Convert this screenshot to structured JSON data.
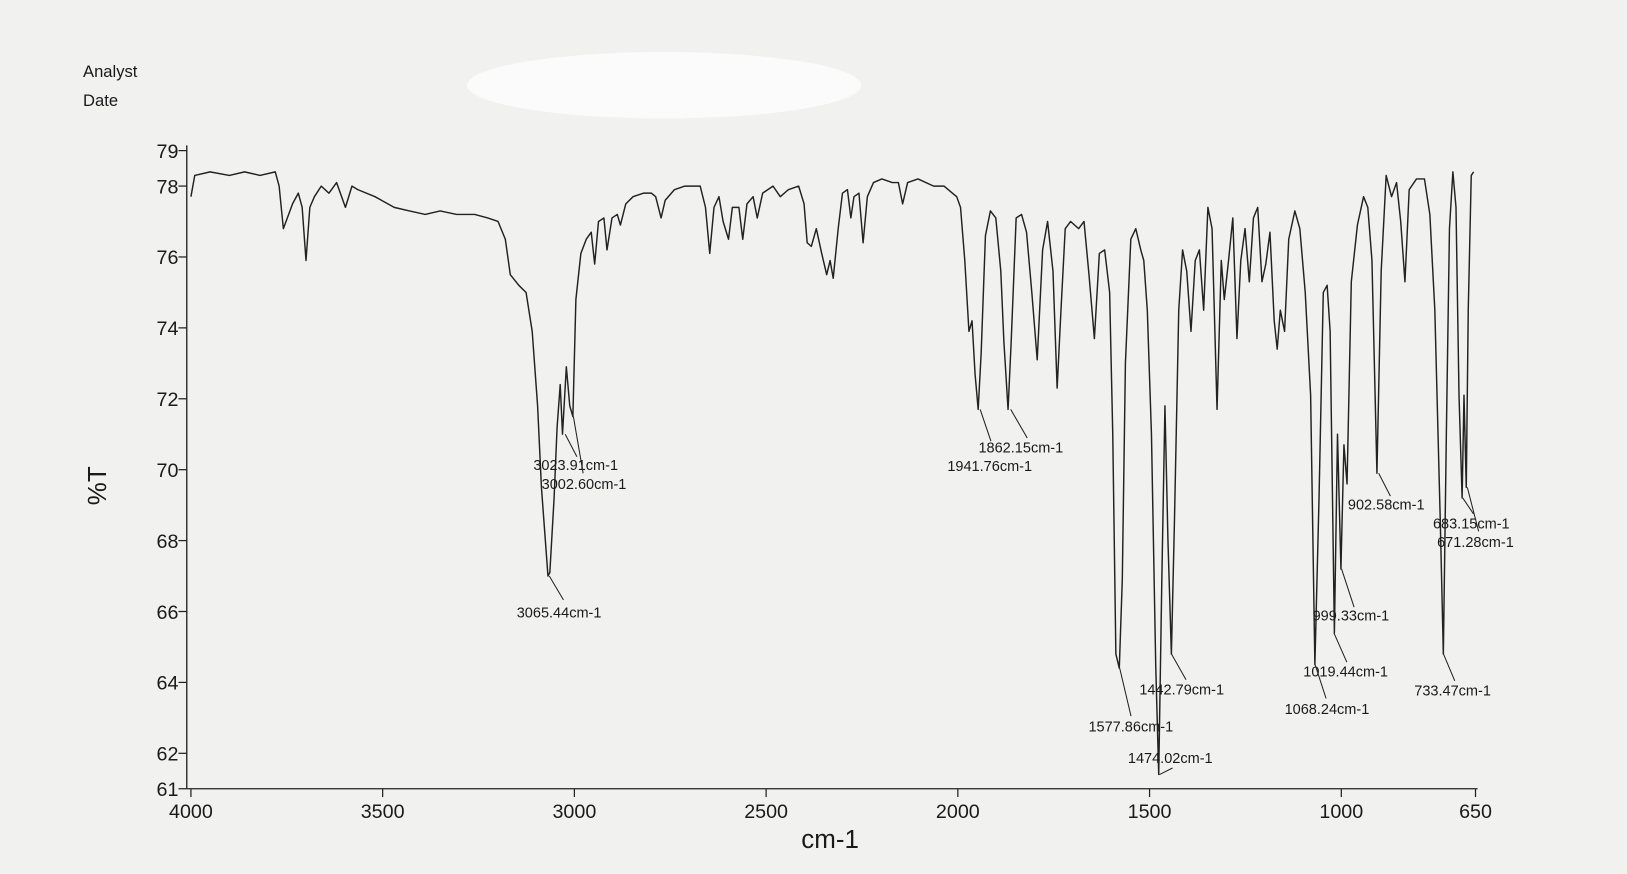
{
  "header": {
    "lines": [
      "Analyst",
      "Date"
    ]
  },
  "chart_data": {
    "type": "line",
    "xlabel": "cm-1",
    "ylabel": "%T",
    "color": "#222222",
    "xlim": [
      4000,
      650
    ],
    "ylim": [
      61,
      79
    ],
    "xticks": [
      4000,
      3500,
      3000,
      2500,
      2000,
      1500,
      1000,
      650
    ],
    "yticks": [
      61,
      62,
      64,
      66,
      68,
      70,
      72,
      74,
      76,
      78,
      79
    ],
    "x": [
      4000,
      3990,
      3950,
      3900,
      3860,
      3820,
      3780,
      3770,
      3759,
      3745,
      3735,
      3720,
      3710,
      3700,
      3690,
      3678,
      3660,
      3640,
      3620,
      3597,
      3580,
      3565,
      3520,
      3470,
      3430,
      3389,
      3350,
      3307,
      3260,
      3226,
      3199,
      3180,
      3167,
      3145,
      3126,
      3110,
      3096,
      3086,
      3069,
      3064,
      3053,
      3045,
      3037,
      3031,
      3021,
      3012,
      3004,
      2996,
      2983,
      2969,
      2956,
      2947,
      2937,
      2923,
      2915,
      2902,
      2888,
      2880,
      2866,
      2847,
      2820,
      2799,
      2788,
      2774,
      2763,
      2739,
      2712,
      2672,
      2658,
      2647,
      2636,
      2623,
      2612,
      2598,
      2588,
      2571,
      2561,
      2550,
      2534,
      2523,
      2509,
      2482,
      2463,
      2442,
      2415,
      2401,
      2393,
      2382,
      2369,
      2355,
      2342,
      2333,
      2325,
      2312,
      2301,
      2288,
      2279,
      2271,
      2258,
      2247,
      2236,
      2220,
      2198,
      2171,
      2155,
      2144,
      2131,
      2104,
      2063,
      2036,
      2014,
      2003,
      1993,
      1982,
      1971,
      1963,
      1955,
      1947,
      1939,
      1928,
      1915,
      1901,
      1888,
      1880,
      1869,
      1861,
      1848,
      1834,
      1821,
      1807,
      1793,
      1779,
      1766,
      1752,
      1741,
      1731,
      1720,
      1706,
      1685,
      1671,
      1658,
      1644,
      1631,
      1617,
      1604,
      1596,
      1588,
      1579,
      1571,
      1563,
      1549,
      1536,
      1523,
      1515,
      1506,
      1495,
      1484,
      1476,
      1468,
      1460,
      1452,
      1443,
      1435,
      1424,
      1414,
      1403,
      1392,
      1381,
      1370,
      1359,
      1348,
      1337,
      1324,
      1313,
      1305,
      1294,
      1283,
      1272,
      1262,
      1251,
      1240,
      1229,
      1218,
      1207,
      1197,
      1186,
      1175,
      1167,
      1159,
      1148,
      1137,
      1121,
      1108,
      1094,
      1080,
      1069,
      1058,
      1047,
      1037,
      1029,
      1018,
      1010,
      1001,
      993,
      985,
      974,
      958,
      942,
      931,
      920,
      907,
      896,
      883,
      869,
      856,
      845,
      834,
      823,
      804,
      783,
      769,
      756,
      742,
      734,
      726,
      718,
      709,
      701,
      693,
      685,
      680,
      674,
      669,
      661,
      655
    ],
    "values": [
      77.7,
      78.3,
      78.4,
      78.3,
      78.4,
      78.3,
      78.4,
      78.0,
      76.8,
      77.2,
      77.5,
      77.8,
      77.4,
      75.9,
      77.4,
      77.7,
      78.0,
      77.8,
      78.1,
      77.4,
      78.0,
      77.9,
      77.7,
      77.4,
      77.3,
      77.2,
      77.3,
      77.2,
      77.2,
      77.1,
      77.0,
      76.5,
      75.5,
      75.2,
      75.0,
      73.9,
      71.8,
      69.5,
      67.0,
      67.1,
      69.2,
      71.2,
      72.4,
      71.0,
      72.9,
      71.8,
      71.5,
      74.8,
      76.1,
      76.5,
      76.7,
      75.8,
      77.0,
      77.1,
      76.2,
      77.1,
      77.2,
      76.9,
      77.5,
      77.7,
      77.8,
      77.8,
      77.7,
      77.1,
      77.6,
      77.9,
      78.0,
      78.0,
      77.4,
      76.1,
      77.4,
      77.7,
      77.0,
      76.5,
      77.4,
      77.4,
      76.5,
      77.5,
      77.7,
      77.1,
      77.8,
      78.0,
      77.7,
      77.9,
      78.0,
      77.5,
      76.4,
      76.3,
      76.8,
      76.1,
      75.5,
      75.9,
      75.4,
      76.8,
      77.8,
      77.9,
      77.1,
      77.7,
      77.8,
      76.4,
      77.7,
      78.1,
      78.2,
      78.1,
      78.1,
      77.5,
      78.1,
      78.2,
      78.0,
      78.0,
      77.8,
      77.7,
      77.4,
      75.9,
      73.9,
      74.2,
      72.7,
      71.7,
      73.3,
      76.6,
      77.3,
      77.1,
      75.6,
      73.6,
      71.7,
      73.6,
      77.1,
      77.2,
      76.7,
      75.0,
      73.1,
      76.2,
      77.0,
      75.6,
      72.3,
      74.5,
      76.8,
      77.0,
      76.8,
      77.0,
      75.5,
      73.7,
      76.1,
      76.2,
      75.0,
      71.0,
      64.8,
      64.4,
      66.9,
      73.0,
      76.5,
      76.8,
      76.2,
      75.9,
      74.5,
      71.0,
      64.5,
      61.4,
      66.9,
      71.8,
      68.0,
      64.8,
      68.6,
      74.5,
      76.2,
      75.6,
      73.9,
      75.9,
      76.2,
      74.5,
      77.4,
      76.8,
      71.7,
      75.9,
      74.8,
      75.9,
      77.1,
      73.7,
      75.9,
      76.8,
      75.3,
      77.1,
      77.4,
      75.3,
      75.8,
      76.7,
      74.2,
      73.4,
      74.5,
      73.9,
      76.5,
      77.3,
      76.8,
      75.0,
      72.1,
      64.5,
      69.2,
      75.0,
      75.2,
      73.9,
      65.4,
      71.0,
      67.2,
      70.7,
      69.6,
      75.3,
      76.9,
      77.7,
      77.4,
      75.9,
      69.9,
      75.6,
      78.3,
      77.7,
      78.1,
      77.0,
      75.3,
      77.9,
      78.2,
      78.2,
      77.2,
      74.5,
      68.6,
      64.8,
      71.0,
      76.8,
      78.4,
      77.4,
      72.1,
      69.2,
      72.1,
      69.5,
      74.5,
      78.3,
      78.4
    ],
    "annotations": [
      {
        "x": 3065.44,
        "y": 67.0,
        "label": "3065.44cm-1"
      },
      {
        "x": 3023.91,
        "y": 71.0,
        "label": "3023.91cm-1"
      },
      {
        "x": 3002.6,
        "y": 71.5,
        "label": "3002.60cm-1"
      },
      {
        "x": 1941.76,
        "y": 71.7,
        "label": "1941.76cm-1"
      },
      {
        "x": 1862.15,
        "y": 71.7,
        "label": "1862.15cm-1"
      },
      {
        "x": 1577.86,
        "y": 64.4,
        "label": "1577.86cm-1"
      },
      {
        "x": 1474.02,
        "y": 61.4,
        "label": "1474.02cm-1"
      },
      {
        "x": 1442.79,
        "y": 64.8,
        "label": "1442.79cm-1"
      },
      {
        "x": 1068.24,
        "y": 64.5,
        "label": "1068.24cm-1"
      },
      {
        "x": 1019.44,
        "y": 65.4,
        "label": "1019.44cm-1"
      },
      {
        "x": 999.33,
        "y": 67.2,
        "label": "999.33cm-1"
      },
      {
        "x": 902.58,
        "y": 69.9,
        "label": "902.58cm-1"
      },
      {
        "x": 733.47,
        "y": 64.8,
        "label": "733.47cm-1"
      },
      {
        "x": 683.15,
        "y": 69.2,
        "label": "683.15cm-1"
      },
      {
        "x": 671.28,
        "y": 69.5,
        "label": "671.28cm-1"
      }
    ]
  }
}
